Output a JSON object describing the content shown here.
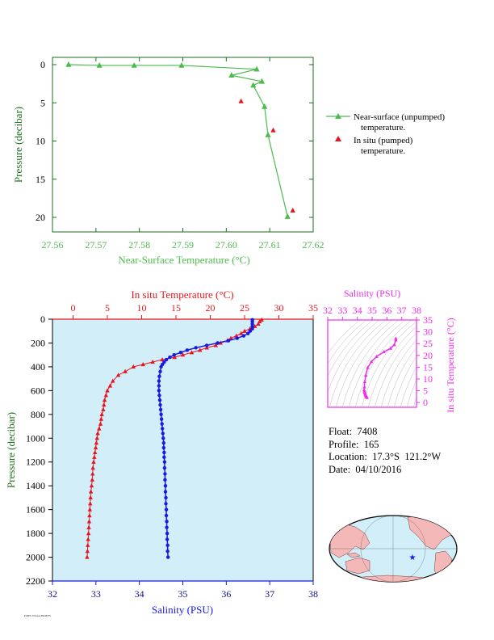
{
  "chart_data": [
    {
      "type": "line",
      "xlabel": "Near-Surface Temperature (°C)",
      "ylabel": "Pressure (decibar)",
      "xlim": [
        27.56,
        27.62
      ],
      "ylim": [
        0,
        22
      ],
      "y_inverted": true,
      "xticks": [
        "27.56",
        "27.57",
        "27.58",
        "27.59",
        "27.60",
        "27.61",
        "27.62"
      ],
      "yticks": [
        "0",
        "5",
        "10",
        "15",
        "20"
      ],
      "grid": false,
      "legend_position": "right",
      "series": [
        {
          "name": "Near-surface (unpumped) temperature.",
          "marker": "triangle",
          "color": "#4cbb4c",
          "points": [
            {
              "x": 27.5637,
              "y": 0.0
            },
            {
              "x": 27.5708,
              "y": 0.1
            },
            {
              "x": 27.5788,
              "y": 0.1
            },
            {
              "x": 27.5897,
              "y": 0.1
            },
            {
              "x": 27.607,
              "y": 0.6
            },
            {
              "x": 27.6012,
              "y": 1.4
            },
            {
              "x": 27.6082,
              "y": 2.2
            },
            {
              "x": 27.6062,
              "y": 2.7
            },
            {
              "x": 27.6088,
              "y": 5.5
            },
            {
              "x": 27.6096,
              "y": 9.2
            },
            {
              "x": 27.6141,
              "y": 19.9
            }
          ]
        },
        {
          "name": "In situ (pumped) temperature.",
          "marker": "triangle",
          "color": "#e8141e",
          "points": [
            {
              "x": 27.6034,
              "y": 4.8
            },
            {
              "x": 27.6108,
              "y": 8.6
            },
            {
              "x": 27.6153,
              "y": 19.1
            }
          ]
        }
      ]
    },
    {
      "type": "line",
      "title_top": "In situ Temperature (°C)",
      "xlabel_bottom": "Salinity (PSU)",
      "ylabel": "Pressure (decibar)",
      "xlim_top": [
        -3,
        35
      ],
      "xticks_top": [
        "0",
        "5",
        "10",
        "15",
        "20",
        "25",
        "30",
        "35"
      ],
      "xlim_bottom": [
        32,
        38
      ],
      "xticks_bottom": [
        "32",
        "33",
        "34",
        "35",
        "36",
        "37",
        "38"
      ],
      "ylim": [
        0,
        2200
      ],
      "y_inverted": true,
      "yticks": [
        "0",
        "200",
        "400",
        "600",
        "800",
        "1000",
        "1200",
        "1400",
        "1600",
        "1800",
        "2000",
        "2200"
      ],
      "background": "#d2eef8",
      "series": [
        {
          "name": "In situ Temperature",
          "axis": "top",
          "marker": "triangle",
          "color": "#e8141e",
          "points": [
            {
              "x": 27.5,
              "y": 5
            },
            {
              "x": 27.2,
              "y": 20
            },
            {
              "x": 27.0,
              "y": 40
            },
            {
              "x": 26.5,
              "y": 60
            },
            {
              "x": 25.8,
              "y": 80
            },
            {
              "x": 25.0,
              "y": 100
            },
            {
              "x": 24.5,
              "y": 120
            },
            {
              "x": 23.8,
              "y": 140
            },
            {
              "x": 23.0,
              "y": 160
            },
            {
              "x": 22.5,
              "y": 180
            },
            {
              "x": 21.5,
              "y": 200
            },
            {
              "x": 20.8,
              "y": 220
            },
            {
              "x": 19.5,
              "y": 240
            },
            {
              "x": 18.5,
              "y": 260
            },
            {
              "x": 17.3,
              "y": 280
            },
            {
              "x": 16.0,
              "y": 300
            },
            {
              "x": 14.8,
              "y": 320
            },
            {
              "x": 13.0,
              "y": 340
            },
            {
              "x": 11.6,
              "y": 360
            },
            {
              "x": 10.2,
              "y": 380
            },
            {
              "x": 8.8,
              "y": 400
            },
            {
              "x": 7.6,
              "y": 440
            },
            {
              "x": 6.6,
              "y": 470
            },
            {
              "x": 5.8,
              "y": 520
            },
            {
              "x": 5.4,
              "y": 560
            },
            {
              "x": 5.0,
              "y": 600
            },
            {
              "x": 4.8,
              "y": 640
            },
            {
              "x": 4.6,
              "y": 680
            },
            {
              "x": 4.5,
              "y": 720
            },
            {
              "x": 4.4,
              "y": 760
            },
            {
              "x": 4.2,
              "y": 800
            },
            {
              "x": 4.1,
              "y": 840
            },
            {
              "x": 4.0,
              "y": 880
            },
            {
              "x": 3.8,
              "y": 920
            },
            {
              "x": 3.6,
              "y": 960
            },
            {
              "x": 3.5,
              "y": 1000
            },
            {
              "x": 3.4,
              "y": 1040
            },
            {
              "x": 3.3,
              "y": 1080
            },
            {
              "x": 3.2,
              "y": 1120
            },
            {
              "x": 3.1,
              "y": 1160
            },
            {
              "x": 3.0,
              "y": 1200
            },
            {
              "x": 2.9,
              "y": 1250
            },
            {
              "x": 2.85,
              "y": 1300
            },
            {
              "x": 2.8,
              "y": 1350
            },
            {
              "x": 2.7,
              "y": 1400
            },
            {
              "x": 2.6,
              "y": 1450
            },
            {
              "x": 2.55,
              "y": 1500
            },
            {
              "x": 2.5,
              "y": 1550
            },
            {
              "x": 2.45,
              "y": 1600
            },
            {
              "x": 2.4,
              "y": 1650
            },
            {
              "x": 2.35,
              "y": 1700
            },
            {
              "x": 2.3,
              "y": 1750
            },
            {
              "x": 2.25,
              "y": 1800
            },
            {
              "x": 2.2,
              "y": 1850
            },
            {
              "x": 2.15,
              "y": 1900
            },
            {
              "x": 2.1,
              "y": 1950
            },
            {
              "x": 2.05,
              "y": 2000
            }
          ]
        },
        {
          "name": "Salinity",
          "axis": "bottom",
          "marker": "circle",
          "color": "#1919e6",
          "points": [
            {
              "x": 36.6,
              "y": 5
            },
            {
              "x": 36.6,
              "y": 20
            },
            {
              "x": 36.6,
              "y": 40
            },
            {
              "x": 36.6,
              "y": 60
            },
            {
              "x": 36.6,
              "y": 80
            },
            {
              "x": 36.55,
              "y": 100
            },
            {
              "x": 36.5,
              "y": 120
            },
            {
              "x": 36.4,
              "y": 140
            },
            {
              "x": 36.25,
              "y": 160
            },
            {
              "x": 36.05,
              "y": 180
            },
            {
              "x": 35.8,
              "y": 200
            },
            {
              "x": 35.55,
              "y": 220
            },
            {
              "x": 35.3,
              "y": 240
            },
            {
              "x": 35.1,
              "y": 260
            },
            {
              "x": 34.95,
              "y": 280
            },
            {
              "x": 34.8,
              "y": 300
            },
            {
              "x": 34.7,
              "y": 320
            },
            {
              "x": 34.62,
              "y": 340
            },
            {
              "x": 34.57,
              "y": 360
            },
            {
              "x": 34.53,
              "y": 380
            },
            {
              "x": 34.5,
              "y": 400
            },
            {
              "x": 34.48,
              "y": 440
            },
            {
              "x": 34.46,
              "y": 480
            },
            {
              "x": 34.45,
              "y": 520
            },
            {
              "x": 34.45,
              "y": 560
            },
            {
              "x": 34.45,
              "y": 600
            },
            {
              "x": 34.46,
              "y": 640
            },
            {
              "x": 34.47,
              "y": 680
            },
            {
              "x": 34.48,
              "y": 720
            },
            {
              "x": 34.49,
              "y": 760
            },
            {
              "x": 34.5,
              "y": 800
            },
            {
              "x": 34.51,
              "y": 840
            },
            {
              "x": 34.52,
              "y": 880
            },
            {
              "x": 34.53,
              "y": 920
            },
            {
              "x": 34.54,
              "y": 960
            },
            {
              "x": 34.55,
              "y": 1000
            },
            {
              "x": 34.56,
              "y": 1040
            },
            {
              "x": 34.56,
              "y": 1080
            },
            {
              "x": 34.57,
              "y": 1120
            },
            {
              "x": 34.57,
              "y": 1160
            },
            {
              "x": 34.58,
              "y": 1200
            },
            {
              "x": 34.58,
              "y": 1250
            },
            {
              "x": 34.59,
              "y": 1300
            },
            {
              "x": 34.59,
              "y": 1350
            },
            {
              "x": 34.6,
              "y": 1400
            },
            {
              "x": 34.6,
              "y": 1450
            },
            {
              "x": 34.61,
              "y": 1500
            },
            {
              "x": 34.61,
              "y": 1550
            },
            {
              "x": 34.62,
              "y": 1600
            },
            {
              "x": 34.62,
              "y": 1650
            },
            {
              "x": 34.63,
              "y": 1700
            },
            {
              "x": 34.63,
              "y": 1750
            },
            {
              "x": 34.64,
              "y": 1800
            },
            {
              "x": 34.64,
              "y": 1850
            },
            {
              "x": 34.65,
              "y": 1900
            },
            {
              "x": 34.65,
              "y": 1950
            },
            {
              "x": 34.66,
              "y": 2000
            }
          ]
        }
      ]
    },
    {
      "type": "scatter",
      "title_top": "Salinity (PSU)",
      "ylabel_right": "In situ Temperature (°C)",
      "xlim": [
        32,
        38
      ],
      "xticks": [
        "32",
        "33",
        "34",
        "35",
        "36",
        "37",
        "38"
      ],
      "ylim": [
        -2,
        35
      ],
      "yticks": [
        "0",
        "5",
        "10",
        "15",
        "20",
        "25",
        "30",
        "35"
      ],
      "color": "#ee2ee8",
      "points": [
        {
          "x": 34.66,
          "y": 2.1
        },
        {
          "x": 34.64,
          "y": 2.3
        },
        {
          "x": 34.62,
          "y": 2.5
        },
        {
          "x": 34.6,
          "y": 2.7
        },
        {
          "x": 34.58,
          "y": 3.0
        },
        {
          "x": 34.56,
          "y": 3.3
        },
        {
          "x": 34.54,
          "y": 3.6
        },
        {
          "x": 34.52,
          "y": 4.0
        },
        {
          "x": 34.5,
          "y": 4.4
        },
        {
          "x": 34.48,
          "y": 4.8
        },
        {
          "x": 34.46,
          "y": 5.4
        },
        {
          "x": 34.48,
          "y": 6.6
        },
        {
          "x": 34.5,
          "y": 8.8
        },
        {
          "x": 34.57,
          "y": 11.6
        },
        {
          "x": 34.7,
          "y": 14.8
        },
        {
          "x": 34.95,
          "y": 17.3
        },
        {
          "x": 35.3,
          "y": 19.5
        },
        {
          "x": 35.8,
          "y": 21.5
        },
        {
          "x": 36.25,
          "y": 23.0
        },
        {
          "x": 36.5,
          "y": 24.5
        },
        {
          "x": 36.6,
          "y": 26.5
        },
        {
          "x": 36.6,
          "y": 27.2
        }
      ]
    }
  ],
  "info": {
    "float": "Float:  7408",
    "profile": "Profile:  165",
    "location": "Location:  17.3°S  121.2°W",
    "date": "Date:  04/10/2016"
  },
  "footer_tiny": "PMEL/NOAA BRIEFS",
  "colors": {
    "green": "#4cbb4c",
    "red": "#e8141e",
    "blue": "#1919e6",
    "magenta": "#ee2ee8",
    "navy": "#101080",
    "land": "#f4b8b8",
    "ocean": "#d2eef8"
  }
}
